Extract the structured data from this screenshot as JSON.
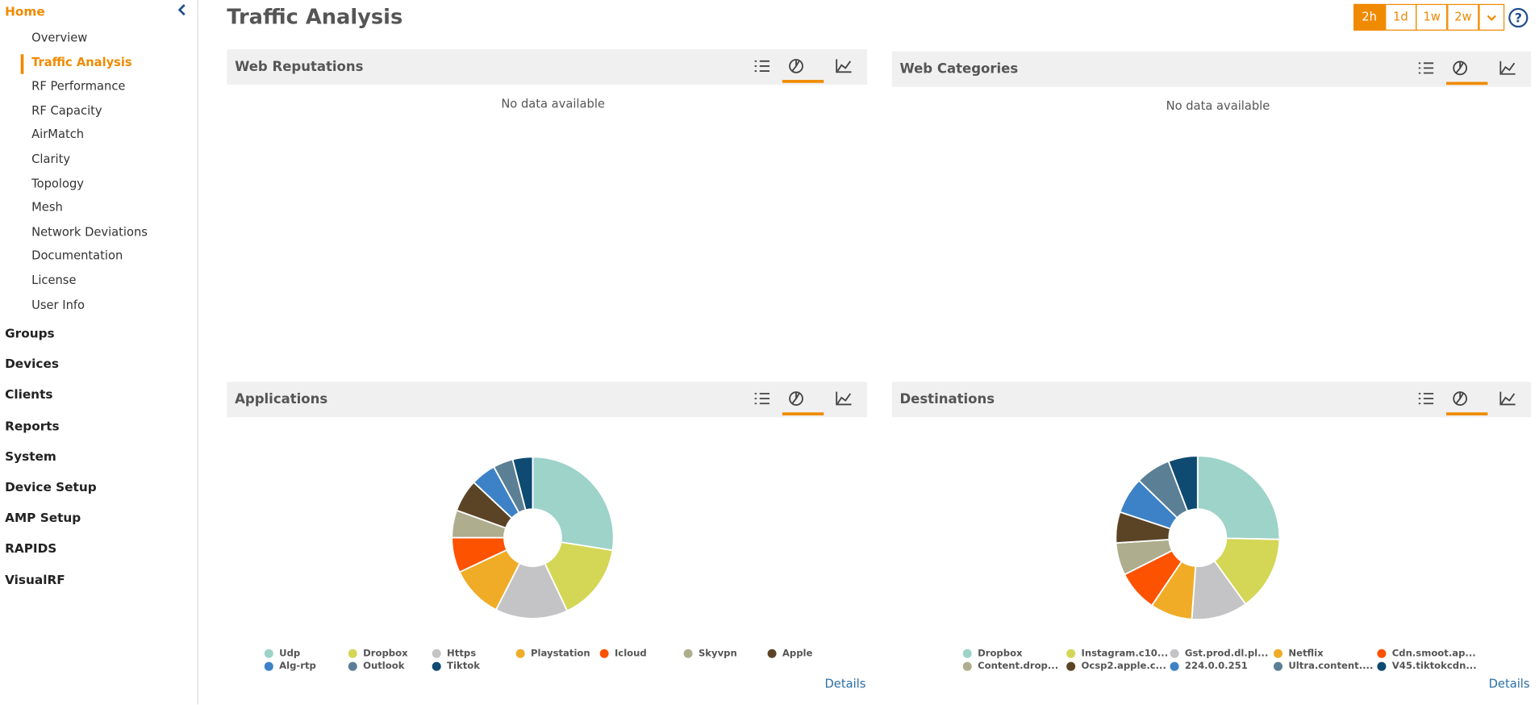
{
  "sidebar": {
    "home": "Home",
    "items": [
      "Overview",
      "Traffic Analysis",
      "RF Performance",
      "RF Capacity",
      "AirMatch",
      "Clarity",
      "Topology",
      "Mesh",
      "Network Deviations",
      "Documentation",
      "License",
      "User Info"
    ],
    "active": 1,
    "sections": [
      "Groups",
      "Devices",
      "Clients",
      "Reports",
      "System",
      "Device Setup",
      "AMP Setup",
      "RAPIDS",
      "VisualRF"
    ]
  },
  "header": {
    "title": "Traffic Analysis",
    "time_ranges": [
      "2h",
      "1d",
      "1w",
      "2w"
    ],
    "active_range": 0
  },
  "empty_panels": [
    {
      "title": "Web Reputations",
      "message": "No data available"
    },
    {
      "title": "Web Categories",
      "message": "No data available"
    }
  ],
  "chart_data": [
    {
      "type": "pie",
      "title": "Applications",
      "categories": [
        "Udp",
        "Dropbox",
        "Https",
        "Playstation",
        "Icloud",
        "Skyvpn",
        "Apple",
        "Alg-rtp",
        "Outlook",
        "Tiktok"
      ],
      "values": [
        27.5,
        15.5,
        14.5,
        10.5,
        7,
        5.5,
        6.5,
        5,
        4,
        4
      ],
      "colors": [
        "#9dd3c8",
        "#d4d656",
        "#c4c4c6",
        "#f0ac27",
        "#fd5200",
        "#aeae8f",
        "#5b4426",
        "#3d82c7",
        "#5b7f95",
        "#0e4a72"
      ],
      "link": "Details"
    },
    {
      "type": "pie",
      "title": "Destinations",
      "categories": [
        "Dropbox",
        "Instagram.c10...",
        "Gst.prod.dl.pl...",
        "Netflix",
        "Cdn.smoot.ap...",
        "Content.drop...",
        "Ocsp2.apple.c...",
        "224.0.0.251",
        "Ultra.content....",
        "V45.tiktokcdn..."
      ],
      "values": [
        25.3,
        14.7,
        11.1,
        8.3,
        8.1,
        6.4,
        6.1,
        7.2,
        6.9,
        5.8
      ],
      "colors": [
        "#9dd3c8",
        "#d4d656",
        "#c4c4c6",
        "#f0ac27",
        "#fd5200",
        "#aeae8f",
        "#5b4426",
        "#3d82c7",
        "#5b7f95",
        "#0e4a72"
      ],
      "link": "Details"
    }
  ]
}
